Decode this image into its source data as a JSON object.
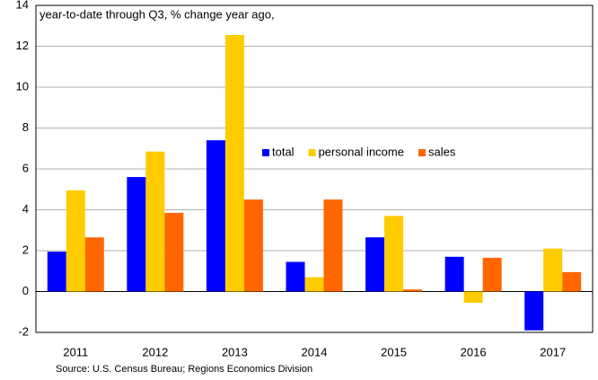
{
  "chart_data": {
    "type": "bar",
    "subtitle": "year-to-date through Q3, % change year ago,",
    "source": "Source: U.S. Census Bureau; Regions Economics Division",
    "categories": [
      "2011",
      "2012",
      "2013",
      "2014",
      "2015",
      "2016",
      "2017"
    ],
    "series": [
      {
        "name": "total",
        "color": "#0000ff",
        "values": [
          1.95,
          5.6,
          7.4,
          1.45,
          2.65,
          1.7,
          -1.9
        ]
      },
      {
        "name": "personal income",
        "color": "#ffcc00",
        "values": [
          4.95,
          6.85,
          12.55,
          0.7,
          3.7,
          -0.55,
          2.1
        ]
      },
      {
        "name": "sales",
        "color": "#ff6600",
        "values": [
          2.65,
          3.85,
          4.5,
          4.5,
          0.1,
          1.65,
          0.95
        ]
      }
    ],
    "ylim": [
      -2,
      14
    ],
    "yticks": [
      -2,
      0,
      2,
      4,
      6,
      8,
      10,
      12,
      14
    ],
    "grid": true,
    "legend": "center"
  }
}
